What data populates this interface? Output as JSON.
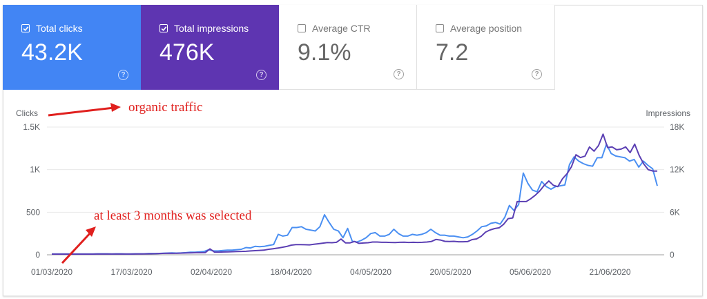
{
  "metrics": [
    {
      "label": "Total clicks",
      "value": "43.2K",
      "checked": true,
      "color": "#4285f4"
    },
    {
      "label": "Total impressions",
      "value": "476K",
      "checked": true,
      "color": "#5e35b1"
    },
    {
      "label": "Average CTR",
      "value": "9.1%",
      "checked": false
    },
    {
      "label": "Average position",
      "value": "7.2",
      "checked": false
    }
  ],
  "help_glyph": "?",
  "annotations": {
    "top": "organic traffic",
    "middle": "at least 3 months was selected",
    "color": "#e0201e"
  },
  "chart_data": {
    "type": "line",
    "y_left_label": "Clicks",
    "y_right_label": "Impressions",
    "y_left_ticks": [
      "0",
      "500",
      "1K",
      "1.5K"
    ],
    "y_right_ticks": [
      "0",
      "6K",
      "12K",
      "18K"
    ],
    "ylim_left": [
      0,
      1500
    ],
    "ylim_right": [
      0,
      18000
    ],
    "x_ticks": [
      "01/03/2020",
      "17/03/2020",
      "02/04/2020",
      "18/04/2020",
      "04/05/2020",
      "20/05/2020",
      "05/06/2020",
      "21/06/2020"
    ],
    "grid": true,
    "series": [
      {
        "name": "Clicks",
        "axis": "left",
        "color": "#4a8ff2",
        "values": [
          10,
          10,
          10,
          10,
          10,
          10,
          10,
          10,
          10,
          10,
          12,
          12,
          12,
          10,
          12,
          12,
          10,
          10,
          12,
          12,
          12,
          15,
          15,
          15,
          18,
          20,
          22,
          20,
          22,
          25,
          30,
          30,
          35,
          40,
          60,
          45,
          45,
          50,
          55,
          55,
          60,
          65,
          85,
          80,
          100,
          95,
          100,
          110,
          120,
          240,
          220,
          230,
          320,
          320,
          330,
          300,
          290,
          280,
          330,
          470,
          380,
          300,
          280,
          200,
          310,
          160,
          150,
          170,
          200,
          250,
          260,
          220,
          220,
          240,
          300,
          250,
          220,
          220,
          240,
          230,
          240,
          260,
          300,
          260,
          230,
          230,
          220,
          220,
          210,
          200,
          210,
          240,
          280,
          330,
          340,
          370,
          380,
          360,
          440,
          580,
          520,
          590,
          960,
          840,
          760,
          740,
          860,
          800,
          770,
          800,
          810,
          820,
          1060,
          1150,
          1100,
          1070,
          1050,
          1040,
          1140,
          1140,
          1300,
          1190,
          1160,
          1150,
          1140,
          1100,
          1120,
          1030,
          1100,
          1050,
          1010,
          810
        ]
      },
      {
        "name": "Impressions",
        "axis": "right",
        "color": "#5b3fb3",
        "values": [
          100,
          100,
          100,
          100,
          100,
          100,
          100,
          100,
          100,
          100,
          110,
          110,
          110,
          110,
          110,
          110,
          110,
          110,
          110,
          120,
          130,
          140,
          150,
          160,
          180,
          200,
          220,
          200,
          220,
          240,
          260,
          280,
          300,
          300,
          320,
          840,
          380,
          380,
          400,
          420,
          440,
          460,
          480,
          500,
          540,
          580,
          620,
          660,
          780,
          860,
          940,
          1060,
          1180,
          1360,
          1440,
          1440,
          1420,
          1400,
          1480,
          1560,
          1640,
          1720,
          1700,
          1760,
          2220,
          1680,
          1680,
          1880,
          1620,
          1660,
          1700,
          1800,
          1800,
          1760,
          1760,
          1740,
          1720,
          1760,
          1780,
          1740,
          1760,
          1740,
          1760,
          1800,
          1880,
          2160,
          2080,
          1900,
          1880,
          1900,
          1840,
          1840,
          1860,
          2140,
          2240,
          2600,
          3200,
          3500,
          3700,
          3800,
          4300,
          5100,
          5200,
          7500,
          7500,
          7500,
          7900,
          8400,
          9000,
          9800,
          10400,
          9800,
          9600,
          10700,
          11400,
          12400,
          14100,
          13700,
          13900,
          15200,
          14600,
          15400,
          17000,
          15100,
          15200,
          14800,
          14900,
          15200,
          14400,
          15600,
          14000,
          12800,
          12000,
          11800,
          11800
        ]
      }
    ]
  }
}
